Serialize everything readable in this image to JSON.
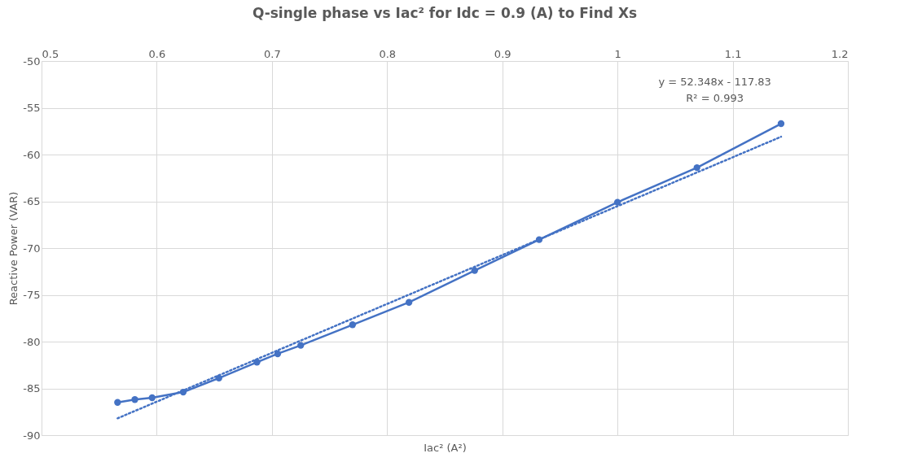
{
  "chart_data": {
    "type": "line",
    "title": "Q-single phase vs Iac² for Idc = 0.9 (A) to Find Xs",
    "xlabel": "Iac² (A²)",
    "ylabel": "Reactive Power (VAR)",
    "xlim": [
      0.5,
      1.2
    ],
    "xticks": [
      0.5,
      0.6,
      0.7,
      0.8,
      0.9,
      1,
      1.1,
      1.2
    ],
    "ylim": [
      -90,
      -50
    ],
    "yticks": [
      -90,
      -85,
      -80,
      -75,
      -70,
      -65,
      -60,
      -55,
      -50
    ],
    "grid": true,
    "series": [
      {
        "color": "#4472c4",
        "marker": "circle",
        "line_style": "solid",
        "x": [
          0.566,
          0.581,
          0.596,
          0.623,
          0.654,
          0.687,
          0.705,
          0.725,
          0.77,
          0.819,
          0.876,
          0.932,
          1.0,
          1.069,
          1.142
        ],
        "values": [
          -86.5,
          -86.2,
          -86.0,
          -85.4,
          -83.9,
          -82.2,
          -81.3,
          -80.4,
          -78.2,
          -75.8,
          -72.4,
          -69.1,
          -65.1,
          -61.4,
          -56.7
        ]
      },
      {
        "color": "#4472c4",
        "marker": "none",
        "line_style": "dotted",
        "x": [
          0.566,
          1.142
        ],
        "values": [
          -88.2,
          -58.1
        ]
      }
    ],
    "annotations": [
      "y = 52.348x - 117.83",
      "R² = 0.993"
    ]
  }
}
